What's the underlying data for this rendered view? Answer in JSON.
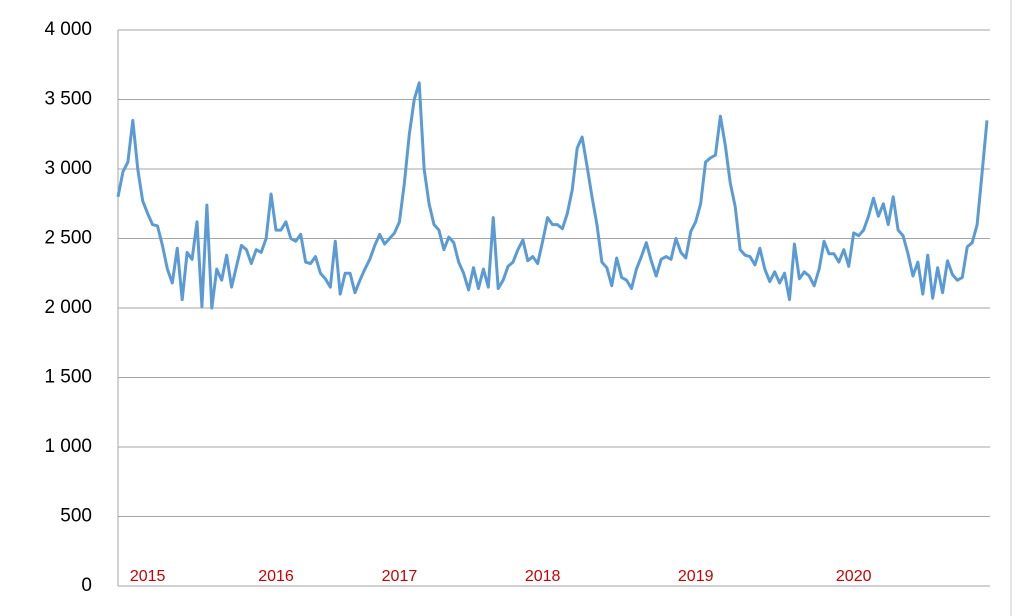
{
  "chart_data": {
    "type": "line",
    "categories": [
      null,
      null,
      null,
      null,
      null,
      null,
      "2015",
      null,
      null,
      null,
      null,
      null,
      null,
      null,
      null,
      null,
      null,
      null,
      null,
      null,
      null,
      null,
      null,
      null,
      null,
      null,
      null,
      null,
      null,
      null,
      null,
      null,
      "2016",
      null,
      null,
      null,
      null,
      null,
      null,
      null,
      null,
      null,
      null,
      null,
      null,
      null,
      null,
      null,
      null,
      null,
      null,
      null,
      null,
      null,
      null,
      null,
      null,
      "2017",
      null,
      null,
      null,
      null,
      null,
      null,
      null,
      null,
      null,
      null,
      null,
      null,
      null,
      null,
      null,
      null,
      null,
      null,
      null,
      null,
      null,
      null,
      null,
      null,
      null,
      null,
      null,
      null,
      "2018",
      null,
      null,
      null,
      null,
      null,
      null,
      null,
      null,
      null,
      null,
      null,
      null,
      null,
      null,
      null,
      null,
      null,
      null,
      null,
      null,
      null,
      null,
      null,
      null,
      null,
      null,
      null,
      null,
      null,
      null,
      "2019",
      null,
      null,
      null,
      null,
      null,
      null,
      null,
      null,
      null,
      null,
      null,
      null,
      null,
      null,
      null,
      null,
      null,
      null,
      null,
      null,
      null,
      null,
      null,
      null,
      null,
      null,
      null,
      null,
      null,
      null,
      null,
      "2020",
      null,
      null,
      null,
      null,
      null,
      null,
      null,
      null,
      null,
      null,
      null,
      null,
      null,
      null,
      null,
      null,
      null,
      null,
      null,
      null,
      null,
      null,
      null,
      null,
      null,
      null,
      null
    ],
    "series": [
      {
        "color": "#5b9bd5",
        "values": [
          2800,
          2980,
          3050,
          3350,
          3000,
          2770,
          2680,
          2600,
          2590,
          2450,
          2280,
          2180,
          2430,
          2060,
          2400,
          2350,
          2620,
          2010,
          2740,
          2000,
          2280,
          2200,
          2380,
          2150,
          2300,
          2450,
          2420,
          2320,
          2420,
          2400,
          2500,
          2820,
          2560,
          2560,
          2620,
          2500,
          2480,
          2530,
          2330,
          2320,
          2370,
          2250,
          2210,
          2150,
          2480,
          2100,
          2250,
          2250,
          2110,
          2200,
          2280,
          2350,
          2450,
          2530,
          2460,
          2500,
          2540,
          2620,
          2900,
          3250,
          3500,
          3620,
          3000,
          2750,
          2600,
          2560,
          2420,
          2510,
          2470,
          2330,
          2250,
          2130,
          2290,
          2140,
          2280,
          2150,
          2650,
          2140,
          2200,
          2300,
          2330,
          2420,
          2490,
          2340,
          2370,
          2320,
          2480,
          2650,
          2600,
          2600,
          2570,
          2680,
          2850,
          3150,
          3230,
          3020,
          2800,
          2600,
          2330,
          2290,
          2160,
          2360,
          2220,
          2200,
          2140,
          2280,
          2370,
          2470,
          2340,
          2230,
          2350,
          2370,
          2350,
          2500,
          2400,
          2360,
          2550,
          2620,
          2750,
          3050,
          3080,
          3100,
          3380,
          3170,
          2900,
          2730,
          2420,
          2380,
          2370,
          2310,
          2430,
          2280,
          2190,
          2260,
          2180,
          2250,
          2060,
          2460,
          2210,
          2260,
          2230,
          2160,
          2280,
          2480,
          2390,
          2390,
          2330,
          2420,
          2300,
          2540,
          2520,
          2560,
          2660,
          2790,
          2660,
          2750,
          2600,
          2800,
          2560,
          2520,
          2390,
          2230,
          2330,
          2100,
          2380,
          2070,
          2290,
          2110,
          2340,
          2240,
          2200,
          2220,
          2440,
          2470,
          2600,
          2970,
          3350
        ]
      }
    ],
    "ylim": [
      0,
      4000
    ],
    "yticks": [
      0,
      500,
      {
        "value": 1000,
        "label": "1 000"
      },
      {
        "value": 1500,
        "label": "1 500"
      },
      {
        "value": 2000,
        "label": "2 000"
      },
      {
        "value": 2500,
        "label": "2 500"
      },
      {
        "value": 3000,
        "label": "3 000"
      },
      {
        "value": 3500,
        "label": "3 500"
      },
      {
        "value": 4000,
        "label": "4 000"
      }
    ],
    "grid": true,
    "category_label_color": "#cc0000"
  }
}
